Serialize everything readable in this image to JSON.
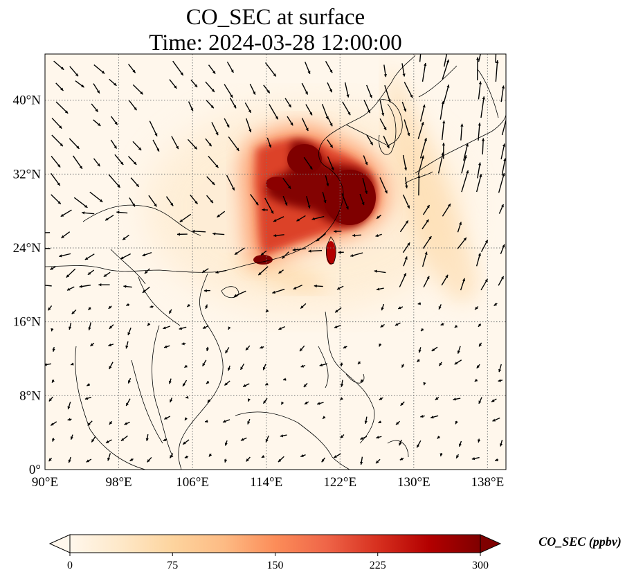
{
  "title_line1": "CO_SEC at surface",
  "title_line2": "Time: 2024-03-28 12:00:00",
  "map": {
    "lon_range": [
      90,
      140
    ],
    "lat_range": [
      0,
      45
    ],
    "lon_ticks": [
      90,
      98,
      106,
      114,
      122,
      130,
      138
    ],
    "lon_labels": [
      "90°E",
      "98°E",
      "106°E",
      "114°E",
      "122°E",
      "130°E",
      "138°E"
    ],
    "lat_ticks": [
      0,
      8,
      16,
      24,
      32,
      40
    ],
    "lat_labels": [
      "0°",
      "8°N",
      "16°N",
      "24°N",
      "32°N",
      "40°N"
    ],
    "gridlines": true,
    "background_color": "#fff7ec",
    "field_color_high": "#7f0000"
  },
  "colorbar": {
    "label": "CO_SEC (ppbv)",
    "min": 0,
    "max": 300,
    "ticks": [
      0,
      75,
      150,
      225,
      300
    ],
    "tick_labels": [
      "0",
      "75",
      "150",
      "225",
      "300"
    ],
    "extend": "both",
    "colormap": "OrRd",
    "stops": [
      "#fff7ec",
      "#fee8c8",
      "#fdd49e",
      "#fdbb84",
      "#fc8d59",
      "#ef6548",
      "#d7301f",
      "#b30000",
      "#7f0000"
    ]
  }
}
